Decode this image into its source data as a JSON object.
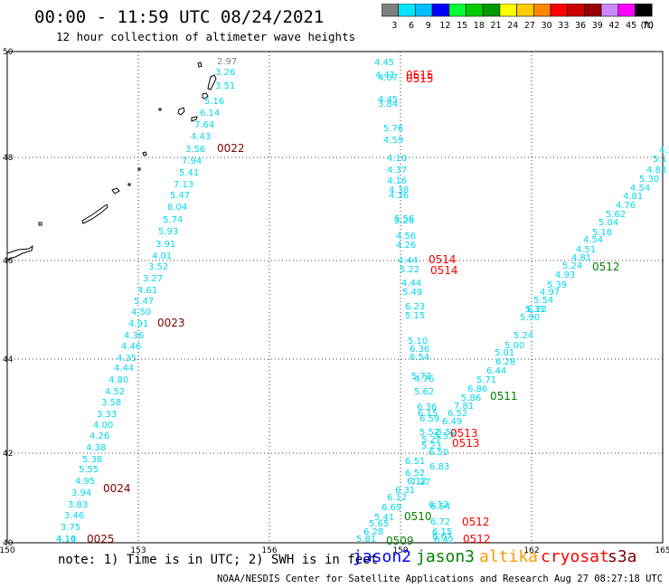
{
  "header": {
    "title": "00:00 - 11:59 UTC 08/24/2021",
    "subtitle": "12 hour collection of altimeter wave heights"
  },
  "legend": {
    "unit_label": "(ft)",
    "bins": [
      {
        "label": "3",
        "color": "#808080"
      },
      {
        "label": "6",
        "color": "#00e5ff"
      },
      {
        "label": "9",
        "color": "#00bfff"
      },
      {
        "label": "12",
        "color": "#0000ff"
      },
      {
        "label": "15",
        "color": "#00ff33"
      },
      {
        "label": "18",
        "color": "#00cc00"
      },
      {
        "label": "21",
        "color": "#009900"
      },
      {
        "label": "24",
        "color": "#ffff00"
      },
      {
        "label": "27",
        "color": "#ffcc00"
      },
      {
        "label": "30",
        "color": "#ff8800"
      },
      {
        "label": "33",
        "color": "#ff0000"
      },
      {
        "label": "36",
        "color": "#cc0000"
      },
      {
        "label": "39",
        "color": "#990000"
      },
      {
        "label": "42",
        "color": "#cc88ff"
      },
      {
        "label": "45",
        "color": "#ff00ff"
      },
      {
        "label": "70",
        "color": "#000000"
      }
    ]
  },
  "axes": {
    "lon_ticks": [
      "150",
      "153",
      "156",
      "159",
      "162",
      "165"
    ],
    "lat_ticks": [
      "50",
      "48",
      "46",
      "44",
      "42",
      "40"
    ]
  },
  "tracks": [
    {
      "name": "0022",
      "color": "#800000"
    },
    {
      "name": "0023",
      "color": "#800000"
    },
    {
      "name": "0024",
      "color": "#800000"
    },
    {
      "name": "0025",
      "color": "#800000"
    },
    {
      "name": "0509",
      "color": "#008000"
    },
    {
      "name": "0510",
      "color": "#008000"
    },
    {
      "name": "0511",
      "color": "#008000"
    },
    {
      "name": "0512",
      "color": "#008000"
    },
    {
      "name": "0512",
      "color": "#ff0000"
    },
    {
      "name": "0512",
      "color": "#ff0000"
    },
    {
      "name": "0513",
      "color": "#ff0000"
    },
    {
      "name": "0513",
      "color": "#ff0000"
    },
    {
      "name": "0514",
      "color": "#ff0000"
    },
    {
      "name": "0514",
      "color": "#ff0000"
    },
    {
      "name": "0515",
      "color": "#ff0000"
    },
    {
      "name": "0515",
      "color": "#ff0000"
    }
  ],
  "observations": {
    "trackA": [
      "2.97",
      "3.26",
      "3.51",
      "5.16",
      "6.14",
      "7.64",
      "4.43",
      "3.56",
      "7.94",
      "5.41",
      "7.13",
      "5.47",
      "8.04",
      "5.74",
      "5.93",
      "3.91",
      "4.01",
      "3.52",
      "3.27",
      "4.61",
      "5.47",
      "4.50",
      "4.91",
      "4.36",
      "4.46",
      "4.35",
      "4.44",
      "4.80",
      "4.52",
      "3.58",
      "3.33",
      "4.00",
      "4.26",
      "4.38",
      "5.38",
      "5.55",
      "4.95",
      "3.94",
      "3.83",
      "3.46",
      "3.75",
      "4.10",
      "4.14"
    ],
    "trackB": [
      "4.45",
      "4.41",
      "4.07",
      "4.45",
      "3.84",
      "5.76",
      "4.59",
      "4.10",
      "4.37",
      "4.16",
      "4.38",
      "4.36",
      "5.56",
      "5.26",
      "4.56",
      "4.26",
      "4.44",
      "5.22",
      "4.44",
      "5.49",
      "6.23",
      "5.15",
      "5.10",
      "6.36",
      "6.54",
      "5.72",
      "4.76",
      "5.62",
      "6.36",
      "6.15",
      "6.59",
      "5.57",
      "5.27",
      "5.23",
      "6.51",
      "6.52",
      "6.12",
      "6.12",
      "6.54",
      "6.72",
      "6.15",
      "6.67",
      "6.42"
    ],
    "trackC": [
      "4.2",
      "5.1",
      "4.83",
      "5.30",
      "4.54",
      "4.81",
      "4.76",
      "5.62",
      "5.04",
      "5.18",
      "4.54",
      "4.51",
      "4.81",
      "5.24",
      "4.93",
      "5.39",
      "4.97",
      "5.54",
      "5.31",
      "5.90",
      "6.22",
      "5.24",
      "5.00",
      "5.01",
      "6.28",
      "6.44",
      "5.71",
      "6.86",
      "5.86",
      "7.81",
      "6.52",
      "6.49",
      "5.52",
      "5.57",
      "6.50",
      "6.83",
      "7.27",
      "6.31",
      "6.12",
      "6.69",
      "5.41",
      "5.65",
      "6.28",
      "5.81"
    ]
  },
  "note": "note: 1) Time is in UTC; 2) SWH is in feet",
  "satellites": [
    {
      "label": "jason2",
      "color": "#0000ff"
    },
    {
      "label": "jason3",
      "color": "#008000"
    },
    {
      "label": "altika",
      "color": "#ff9900"
    },
    {
      "label": "cryosat",
      "color": "#ff0000"
    },
    {
      "label": "s3a",
      "color": "#800000"
    }
  ],
  "credit": "NOAA/NESDIS Center for Satellite Applications and Research   Aug 27 08:27:18 UTC 2021"
}
